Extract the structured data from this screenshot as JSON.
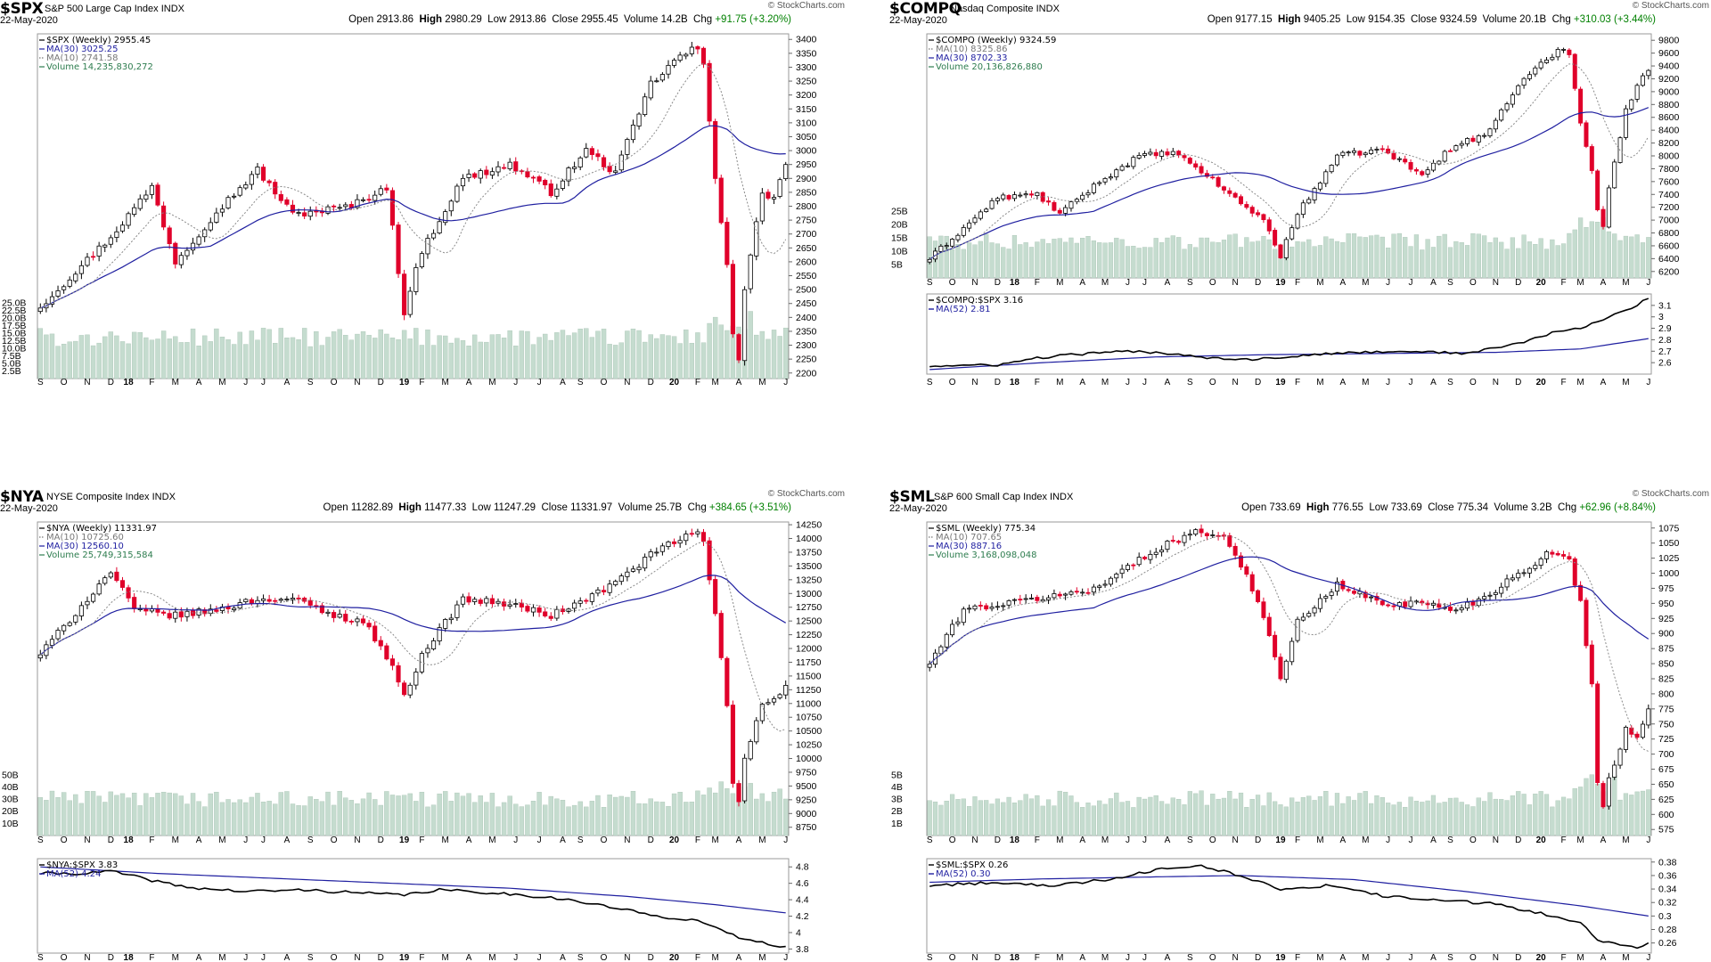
{
  "chart_data": [
    {
      "type": "candlestick",
      "symbol": "$SPX",
      "description": "S&P 500 Large Cap Index",
      "exchange": "INDX",
      "date": "22-May-2020",
      "credit": "© StockCharts.com",
      "ohlc_line": {
        "open": "2913.86",
        "high": "2980.29",
        "low": "2913.86",
        "close": "2955.45",
        "volume": "14.2B",
        "chg": "+91.75 (+3.20%)"
      },
      "legend": [
        "$SPX (Weekly) 2955.45",
        "MA(30) 3025.25",
        "MA(10) 2741.58",
        "Volume 14,235,830,272"
      ],
      "ylim": [
        2180,
        3420
      ],
      "yticks": [
        2200,
        2250,
        2300,
        2350,
        2400,
        2450,
        2500,
        2550,
        2600,
        2650,
        2700,
        2750,
        2800,
        2850,
        2900,
        2950,
        3000,
        3050,
        3100,
        3150,
        3200,
        3250,
        3300,
        3350,
        3400
      ],
      "volume_labels": [
        "2.5B",
        "5.0B",
        "7.5B",
        "10.0B",
        "12.5B",
        "15.0B",
        "17.5B",
        "20.0B",
        "22.5B",
        "25.0B"
      ],
      "vol_max": 25,
      "x_labels": [
        "S",
        "O",
        "N",
        "D",
        "18",
        "F",
        "M",
        "A",
        "M",
        "J",
        "J",
        "A",
        "S",
        "O",
        "N",
        "D",
        "19",
        "F",
        "M",
        "A",
        "M",
        "J",
        "J",
        "A",
        "S",
        "O",
        "N",
        "D",
        "20",
        "F",
        "M",
        "A",
        "M",
        "J"
      ],
      "anchors": [
        [
          0,
          2440
        ],
        [
          12,
          2690
        ],
        [
          19,
          2870
        ],
        [
          23,
          2600
        ],
        [
          30,
          2780
        ],
        [
          37,
          2930
        ],
        [
          43,
          2770
        ],
        [
          53,
          2800
        ],
        [
          59,
          2870
        ],
        [
          62,
          2420
        ],
        [
          65,
          2640
        ],
        [
          72,
          2900
        ],
        [
          80,
          2950
        ],
        [
          87,
          2850
        ],
        [
          93,
          3000
        ],
        [
          98,
          2920
        ],
        [
          104,
          3240
        ],
        [
          109,
          3340
        ],
        [
          112,
          3370
        ],
        [
          113,
          3300
        ],
        [
          115,
          2900
        ],
        [
          117,
          2600
        ],
        [
          118,
          2350
        ],
        [
          119,
          2250
        ],
        [
          120,
          2500
        ],
        [
          123,
          2850
        ],
        [
          125,
          2830
        ],
        [
          127,
          2950
        ]
      ],
      "ma30_final": "3025.25",
      "ma10_final": "2741.58",
      "close": "2955.45",
      "volume": "14.2B"
    },
    {
      "type": "candlestick",
      "symbol": "$COMPQ",
      "description": "Nasdaq Composite",
      "exchange": "INDX",
      "date": "22-May-2020",
      "credit": "© StockCharts.com",
      "ohlc_line": {
        "open": "9177.15",
        "high": "9405.25",
        "low": "9154.35",
        "close": "9324.59",
        "volume": "20.1B",
        "chg": "+310.03 (+3.44%)"
      },
      "legend": [
        "$COMPQ (Weekly) 9324.59",
        "MA(10) 8325.86",
        "MA(30) 8702.33",
        "Volume 20,136,826,880"
      ],
      "ylim": [
        6100,
        9900
      ],
      "yticks": [
        6200,
        6400,
        6600,
        6800,
        7000,
        7200,
        7400,
        7600,
        7800,
        8000,
        8200,
        8400,
        8600,
        8800,
        9000,
        9200,
        9400,
        9600,
        9800
      ],
      "volume_labels": [
        "5B",
        "10B",
        "15B",
        "20B",
        "25B"
      ],
      "vol_max": 25,
      "x_labels": [
        "S",
        "O",
        "N",
        "D",
        "18",
        "F",
        "M",
        "A",
        "M",
        "J",
        "J",
        "A",
        "S",
        "O",
        "N",
        "D",
        "19",
        "F",
        "M",
        "A",
        "M",
        "J",
        "J",
        "A",
        "S",
        "O",
        "N",
        "D",
        "20",
        "F",
        "M",
        "A",
        "M",
        "J"
      ],
      "anchors": [
        [
          0,
          6400
        ],
        [
          12,
          7350
        ],
        [
          19,
          7400
        ],
        [
          23,
          7100
        ],
        [
          30,
          7600
        ],
        [
          37,
          8000
        ],
        [
          43,
          8050
        ],
        [
          49,
          7700
        ],
        [
          53,
          7400
        ],
        [
          59,
          7000
        ],
        [
          62,
          6450
        ],
        [
          65,
          7100
        ],
        [
          72,
          8000
        ],
        [
          80,
          8100
        ],
        [
          87,
          7700
        ],
        [
          93,
          8200
        ],
        [
          98,
          8300
        ],
        [
          104,
          9100
        ],
        [
          109,
          9500
        ],
        [
          112,
          9700
        ],
        [
          113,
          9600
        ],
        [
          115,
          8500
        ],
        [
          117,
          7800
        ],
        [
          118,
          7200
        ],
        [
          119,
          6900
        ],
        [
          120,
          7500
        ],
        [
          123,
          8700
        ],
        [
          125,
          9100
        ],
        [
          127,
          9330
        ]
      ],
      "ratio": {
        "legend": [
          "$COMPQ:$SPX 3.16",
          "MA(52) 2.81"
        ],
        "ylim": [
          2.5,
          3.2
        ],
        "yticks": [
          2.6,
          2.7,
          2.8,
          2.9,
          3.0,
          3.1
        ],
        "anchors": [
          [
            0,
            2.57
          ],
          [
            12,
            2.58
          ],
          [
            19,
            2.64
          ],
          [
            25,
            2.67
          ],
          [
            35,
            2.7
          ],
          [
            43,
            2.68
          ],
          [
            50,
            2.64
          ],
          [
            58,
            2.63
          ],
          [
            65,
            2.66
          ],
          [
            75,
            2.69
          ],
          [
            85,
            2.7
          ],
          [
            95,
            2.68
          ],
          [
            105,
            2.78
          ],
          [
            110,
            2.86
          ],
          [
            115,
            2.9
          ],
          [
            120,
            3.0
          ],
          [
            124,
            3.08
          ],
          [
            127,
            3.16
          ]
        ],
        "ma_anchors": [
          [
            0,
            2.54
          ],
          [
            20,
            2.6
          ],
          [
            40,
            2.65
          ],
          [
            60,
            2.67
          ],
          [
            80,
            2.68
          ],
          [
            100,
            2.69
          ],
          [
            115,
            2.72
          ],
          [
            127,
            2.81
          ]
        ]
      },
      "ma30_final": "8702.33",
      "ma10_final": "8325.86",
      "close": "9324.59",
      "volume": "20.1B"
    },
    {
      "type": "candlestick",
      "symbol": "$NYA",
      "description": "NYSE Composite Index",
      "exchange": "INDX",
      "date": "22-May-2020",
      "credit": "© StockCharts.com",
      "ohlc_line": {
        "open": "11282.89",
        "high": "11477.33",
        "low": "11247.29",
        "close": "11331.97",
        "volume": "25.7B",
        "chg": "+384.65 (+3.51%)"
      },
      "legend": [
        "$NYA (Weekly) 11331.97",
        "MA(10) 10725.60",
        "MA(30) 12560.10",
        "Volume 25,749,315,584"
      ],
      "ylim": [
        8600,
        14300
      ],
      "yticks": [
        8750,
        9000,
        9250,
        9500,
        9750,
        10000,
        10250,
        10500,
        10750,
        11000,
        11250,
        11500,
        11750,
        12000,
        12250,
        12500,
        12750,
        13000,
        13250,
        13500,
        13750,
        14000,
        14250
      ],
      "volume_labels": [
        "10B",
        "20B",
        "30B",
        "40B",
        "50B"
      ],
      "vol_max": 55,
      "x_labels": [
        "S",
        "O",
        "N",
        "D",
        "18",
        "F",
        "M",
        "A",
        "M",
        "J",
        "J",
        "A",
        "S",
        "O",
        "N",
        "D",
        "19",
        "F",
        "M",
        "A",
        "M",
        "J",
        "J",
        "A",
        "S",
        "O",
        "N",
        "D",
        "20",
        "F",
        "M",
        "A",
        "M",
        "J"
      ],
      "anchors": [
        [
          0,
          11900
        ],
        [
          12,
          13400
        ],
        [
          16,
          12700
        ],
        [
          23,
          12600
        ],
        [
          30,
          12700
        ],
        [
          37,
          12900
        ],
        [
          43,
          12900
        ],
        [
          50,
          12600
        ],
        [
          55,
          12500
        ],
        [
          60,
          11700
        ],
        [
          62,
          11100
        ],
        [
          65,
          11900
        ],
        [
          72,
          12900
        ],
        [
          80,
          12800
        ],
        [
          87,
          12600
        ],
        [
          93,
          12900
        ],
        [
          98,
          13200
        ],
        [
          104,
          13700
        ],
        [
          109,
          14000
        ],
        [
          112,
          14100
        ],
        [
          113,
          13950
        ],
        [
          115,
          12600
        ],
        [
          117,
          11000
        ],
        [
          118,
          9500
        ],
        [
          119,
          9200
        ],
        [
          120,
          10000
        ],
        [
          123,
          11000
        ],
        [
          125,
          11100
        ],
        [
          127,
          11330
        ]
      ],
      "ratio": {
        "legend": [
          "$NYA:$SPX 3.83",
          "MA(52) 4.24"
        ],
        "ylim": [
          3.75,
          4.9
        ],
        "yticks": [
          3.8,
          4.0,
          4.2,
          4.4,
          4.6,
          4.8
        ],
        "anchors": [
          [
            0,
            4.72
          ],
          [
            8,
            4.72
          ],
          [
            12,
            4.75
          ],
          [
            18,
            4.65
          ],
          [
            25,
            4.55
          ],
          [
            35,
            4.5
          ],
          [
            45,
            4.52
          ],
          [
            55,
            4.48
          ],
          [
            62,
            4.46
          ],
          [
            68,
            4.52
          ],
          [
            78,
            4.48
          ],
          [
            88,
            4.42
          ],
          [
            98,
            4.3
          ],
          [
            105,
            4.2
          ],
          [
            112,
            4.15
          ],
          [
            116,
            4.02
          ],
          [
            120,
            3.92
          ],
          [
            124,
            3.86
          ],
          [
            127,
            3.83
          ]
        ],
        "ma_anchors": [
          [
            0,
            4.8
          ],
          [
            20,
            4.72
          ],
          [
            40,
            4.66
          ],
          [
            60,
            4.6
          ],
          [
            80,
            4.54
          ],
          [
            100,
            4.44
          ],
          [
            115,
            4.34
          ],
          [
            127,
            4.24
          ]
        ]
      },
      "ma30_final": "12560.10",
      "ma10_final": "10725.60",
      "close": "11331.97",
      "volume": "25.7B"
    },
    {
      "type": "candlestick",
      "symbol": "$SML",
      "description": "S&P 600 Small Cap Index",
      "exchange": "INDX",
      "date": "22-May-2020",
      "credit": "© StockCharts.com",
      "ohlc_line": {
        "open": "733.69",
        "high": "776.55",
        "low": "733.69",
        "close": "775.34",
        "volume": "3.2B",
        "chg": "+62.96 (+8.84%)"
      },
      "legend": [
        "$SML (Weekly) 775.34",
        "MA(10) 707.65",
        "MA(30) 887.16",
        "Volume 3,168,098,048"
      ],
      "ylim": [
        565,
        1085
      ],
      "yticks": [
        575,
        600,
        625,
        650,
        675,
        700,
        725,
        750,
        775,
        800,
        825,
        850,
        875,
        900,
        925,
        950,
        975,
        1000,
        1025,
        1050,
        1075
      ],
      "volume_labels": [
        "1B",
        "2B",
        "3B",
        "4B",
        "5B"
      ],
      "vol_max": 5.5,
      "x_labels": [
        "S",
        "O",
        "N",
        "D",
        "18",
        "F",
        "M",
        "A",
        "M",
        "J",
        "J",
        "A",
        "S",
        "O",
        "N",
        "D",
        "19",
        "F",
        "M",
        "A",
        "M",
        "J",
        "J",
        "A",
        "S",
        "O",
        "N",
        "D",
        "20",
        "F",
        "M",
        "A",
        "M",
        "J"
      ],
      "anchors": [
        [
          0,
          850
        ],
        [
          6,
          940
        ],
        [
          14,
          950
        ],
        [
          20,
          960
        ],
        [
          28,
          970
        ],
        [
          35,
          1010
        ],
        [
          42,
          1050
        ],
        [
          48,
          1070
        ],
        [
          52,
          1060
        ],
        [
          56,
          1000
        ],
        [
          60,
          900
        ],
        [
          62,
          820
        ],
        [
          65,
          920
        ],
        [
          72,
          980
        ],
        [
          80,
          950
        ],
        [
          87,
          950
        ],
        [
          93,
          940
        ],
        [
          98,
          960
        ],
        [
          104,
          1000
        ],
        [
          109,
          1030
        ],
        [
          112,
          1030
        ],
        [
          113,
          1020
        ],
        [
          115,
          950
        ],
        [
          117,
          820
        ],
        [
          118,
          650
        ],
        [
          119,
          610
        ],
        [
          120,
          660
        ],
        [
          123,
          740
        ],
        [
          125,
          730
        ],
        [
          127,
          775
        ]
      ],
      "ratio": {
        "legend": [
          "$SML:$SPX 0.26",
          "MA(52) 0.30"
        ],
        "ylim": [
          0.245,
          0.385
        ],
        "yticks": [
          0.26,
          0.28,
          0.3,
          0.32,
          0.34,
          0.36,
          0.38
        ],
        "anchors": [
          [
            0,
            0.345
          ],
          [
            12,
            0.35
          ],
          [
            22,
            0.345
          ],
          [
            32,
            0.355
          ],
          [
            42,
            0.372
          ],
          [
            48,
            0.375
          ],
          [
            54,
            0.362
          ],
          [
            62,
            0.34
          ],
          [
            70,
            0.345
          ],
          [
            80,
            0.33
          ],
          [
            90,
            0.323
          ],
          [
            100,
            0.318
          ],
          [
            110,
            0.3
          ],
          [
            115,
            0.29
          ],
          [
            118,
            0.265
          ],
          [
            122,
            0.258
          ],
          [
            125,
            0.254
          ],
          [
            127,
            0.26
          ]
        ],
        "ma_anchors": [
          [
            0,
            0.35
          ],
          [
            20,
            0.355
          ],
          [
            40,
            0.358
          ],
          [
            55,
            0.36
          ],
          [
            75,
            0.354
          ],
          [
            95,
            0.336
          ],
          [
            115,
            0.315
          ],
          [
            127,
            0.3
          ]
        ]
      },
      "ma30_final": "887.16",
      "ma10_final": "707.65",
      "close": "775.34",
      "volume": "3.2B"
    }
  ]
}
